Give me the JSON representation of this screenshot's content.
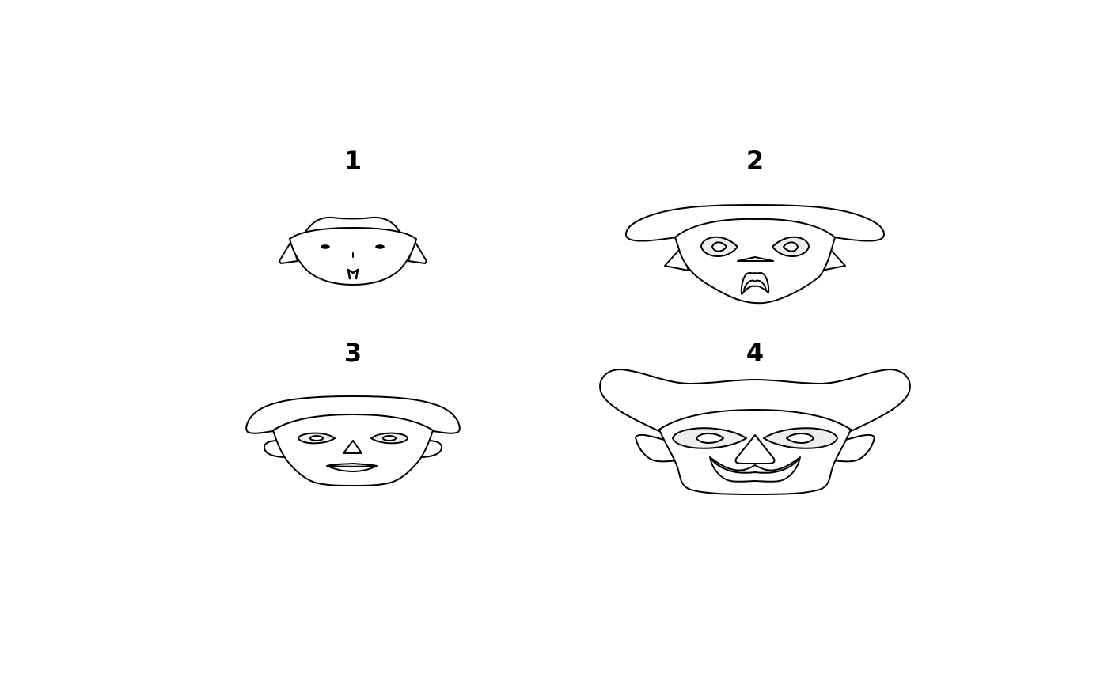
{
  "faces": [
    {
      "label": "1"
    },
    {
      "label": "2"
    },
    {
      "label": "3"
    },
    {
      "label": "4"
    }
  ],
  "colors": {
    "stroke": "#000000",
    "face_fill": "#ffffff",
    "eye_fill": "#eeeeee",
    "background": "#ffffff"
  }
}
